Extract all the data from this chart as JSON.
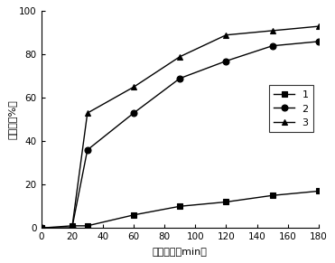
{
  "series": [
    {
      "label": "1",
      "x": [
        0,
        20,
        30,
        60,
        90,
        120,
        150,
        180
      ],
      "y": [
        0,
        1,
        1,
        6,
        10,
        12,
        15,
        17
      ],
      "marker": "s",
      "color": "#000000",
      "linestyle": "-"
    },
    {
      "label": "2",
      "x": [
        0,
        20,
        30,
        60,
        90,
        120,
        150,
        180
      ],
      "y": [
        0,
        0,
        36,
        53,
        69,
        77,
        84,
        86
      ],
      "marker": "o",
      "color": "#000000",
      "linestyle": "-"
    },
    {
      "label": "3",
      "x": [
        0,
        20,
        30,
        60,
        90,
        120,
        150,
        180
      ],
      "y": [
        0,
        0,
        53,
        65,
        79,
        89,
        91,
        93
      ],
      "marker": "^",
      "color": "#000000",
      "linestyle": "-"
    }
  ],
  "xlabel": "光照时间（min）",
  "ylabel": "降解率（%）",
  "xlim": [
    0,
    180
  ],
  "ylim": [
    0,
    100
  ],
  "xticks": [
    0,
    20,
    40,
    60,
    80,
    100,
    120,
    140,
    160,
    180
  ],
  "yticks": [
    0,
    20,
    40,
    60,
    80,
    100
  ],
  "markersize": 5,
  "linewidth": 1.0,
  "background_color": "#ffffff"
}
